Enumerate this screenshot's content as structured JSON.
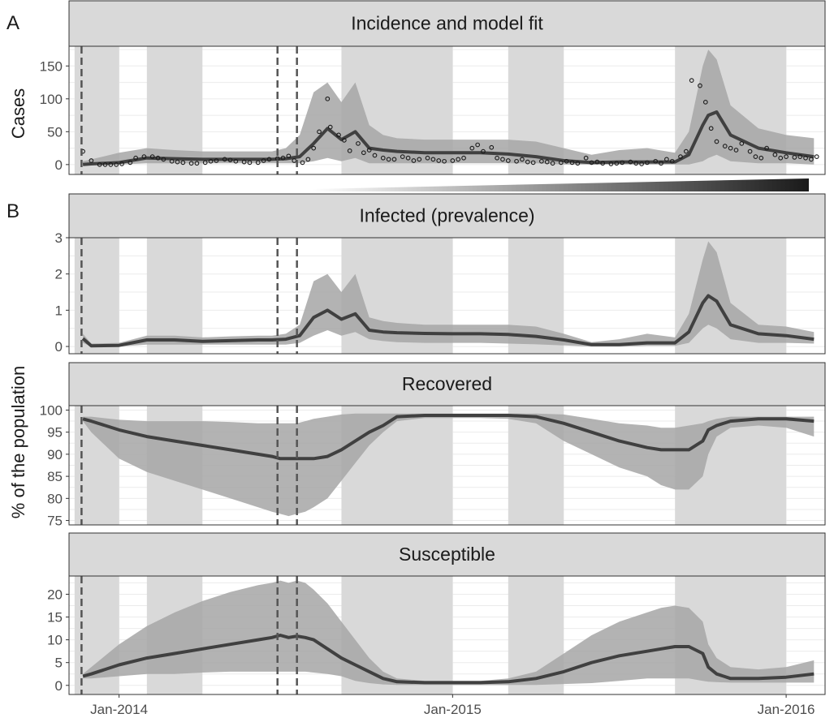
{
  "panel_letters": [
    "A",
    "B"
  ],
  "y_axis_titles": {
    "top": "Cases",
    "bottom": "% of the population"
  },
  "x_ticks": [
    {
      "label": "Jan-2014",
      "x": 1.0
    },
    {
      "label": "Jan-2015",
      "x": 13.0
    },
    {
      "label": "Jan-2016",
      "x": 25.0
    }
  ],
  "colors": {
    "line": "#404040",
    "band": "#a6a6a6",
    "shade": "#d9d9d9",
    "strip": "#d9d9d9",
    "vline": "#555555",
    "grid": "#ebebeb"
  },
  "x_range": [
    -0.8,
    26.4
  ],
  "shaded_periods": [
    [
      -0.6,
      1.0
    ],
    [
      2.0,
      4.0
    ],
    [
      9.0,
      13.0
    ],
    [
      15.0,
      17.0
    ],
    [
      21.0,
      25.0
    ]
  ],
  "vertical_dashed_lines": [
    -0.35,
    6.7,
    7.4
  ],
  "chart_data": [
    {
      "type": "line",
      "title": "Incidence and model fit",
      "ylabel": "Cases",
      "ylim": [
        -15,
        180
      ],
      "yticks": [
        0,
        50,
        100,
        150
      ],
      "series": [
        {
          "x": [
            -0.3,
            0,
            1,
            2,
            3,
            4,
            5,
            6,
            6.5,
            7,
            7.5,
            8,
            8.5,
            9,
            9.5,
            10,
            10.5,
            11,
            12,
            13,
            14,
            15,
            16,
            17,
            18,
            19,
            20,
            21,
            21.5,
            22,
            22.2,
            22.5,
            23,
            24,
            25,
            26
          ],
          "values": [
            0,
            1,
            3,
            10,
            9,
            8,
            8,
            8,
            8,
            9,
            12,
            32,
            55,
            38,
            50,
            25,
            22,
            20,
            18,
            18,
            18,
            16,
            12,
            6,
            3,
            4,
            4,
            4,
            15,
            60,
            75,
            80,
            45,
            25,
            18,
            12
          ]
        }
      ],
      "band": {
        "x": [
          -0.3,
          0,
          1,
          2,
          3,
          4,
          5,
          6,
          6.5,
          7,
          7.5,
          8,
          8.5,
          9,
          9.5,
          10,
          10.5,
          11,
          12,
          13,
          14,
          15,
          16,
          17,
          18,
          19,
          20,
          21,
          21.5,
          22,
          22.2,
          22.5,
          23,
          24,
          25,
          26
        ],
        "lower": [
          0,
          0,
          0,
          2,
          2,
          2,
          2,
          2,
          2,
          2,
          2,
          5,
          10,
          5,
          10,
          2,
          2,
          2,
          2,
          2,
          2,
          2,
          2,
          0,
          0,
          0,
          0,
          0,
          0,
          5,
          10,
          15,
          5,
          2,
          2,
          0
        ],
        "upper": [
          5,
          8,
          18,
          25,
          22,
          20,
          20,
          20,
          20,
          25,
          45,
          110,
          125,
          95,
          125,
          60,
          45,
          40,
          38,
          38,
          38,
          38,
          35,
          25,
          15,
          22,
          25,
          18,
          50,
          150,
          175,
          160,
          90,
          55,
          45,
          40
        ]
      },
      "observed": {
        "x": [
          -0.3,
          0.0,
          0.3,
          0.5,
          0.7,
          0.9,
          1.1,
          1.4,
          1.6,
          1.9,
          2.2,
          2.4,
          2.6,
          2.9,
          3.1,
          3.3,
          3.6,
          3.8,
          4.1,
          4.3,
          4.5,
          4.8,
          5.0,
          5.2,
          5.5,
          5.7,
          6.0,
          6.2,
          6.4,
          6.7,
          6.9,
          7.1,
          7.3,
          7.6,
          7.8,
          8.0,
          8.2,
          8.5,
          8.6,
          8.9,
          9.1,
          9.3,
          9.6,
          9.8,
          10.0,
          10.2,
          10.5,
          10.7,
          10.9,
          11.2,
          11.4,
          11.6,
          11.8,
          12.1,
          12.3,
          12.5,
          12.7,
          13.0,
          13.2,
          13.4,
          13.7,
          13.9,
          14.1,
          14.4,
          14.6,
          14.8,
          15.0,
          15.3,
          15.5,
          15.7,
          15.9,
          16.2,
          16.4,
          16.6,
          16.9,
          17.1,
          17.3,
          17.5,
          17.8,
          18.0,
          18.2,
          18.4,
          18.7,
          18.9,
          19.1,
          19.4,
          19.6,
          19.8,
          20.0,
          20.3,
          20.5,
          20.7,
          20.9,
          21.2,
          21.4,
          21.6,
          21.9,
          22.1,
          22.3,
          22.5,
          22.8,
          23.0,
          23.2,
          23.4,
          23.7,
          23.9,
          24.1,
          24.3,
          24.6,
          24.8,
          25.0,
          25.3,
          25.5,
          25.7,
          25.9,
          26.1
        ],
        "y": [
          20,
          6,
          0,
          0,
          0,
          0,
          1,
          3,
          10,
          12,
          12,
          10,
          8,
          5,
          4,
          3,
          2,
          2,
          3,
          5,
          6,
          8,
          7,
          5,
          4,
          3,
          3,
          6,
          8,
          9,
          10,
          13,
          6,
          3,
          8,
          25,
          50,
          100,
          57,
          45,
          37,
          21,
          32,
          18,
          22,
          14,
          10,
          8,
          8,
          12,
          10,
          6,
          8,
          10,
          8,
          6,
          5,
          6,
          8,
          10,
          25,
          30,
          20,
          26,
          10,
          8,
          6,
          5,
          8,
          4,
          3,
          5,
          4,
          2,
          3,
          5,
          3,
          2,
          10,
          3,
          4,
          2,
          1,
          2,
          3,
          4,
          2,
          1,
          3,
          5,
          2,
          8,
          5,
          12,
          20,
          128,
          120,
          95,
          55,
          35,
          28,
          25,
          22,
          32,
          20,
          12,
          10,
          25,
          15,
          10,
          12,
          11,
          12,
          10,
          8,
          12
        ]
      },
      "gradient_bar": {
        "from": "#ffffff",
        "to": "#1a1a1a"
      }
    },
    {
      "type": "line",
      "title": "Infected (prevalence)",
      "ylim": [
        -0.2,
        3
      ],
      "yticks": [
        0,
        1,
        2,
        3
      ],
      "series": [
        {
          "x": [
            -0.3,
            0,
            1,
            2,
            3,
            4,
            5,
            6,
            6.5,
            7,
            7.5,
            8,
            8.5,
            9,
            9.5,
            10,
            10.5,
            11,
            12,
            13,
            14,
            15,
            16,
            17,
            18,
            19,
            20,
            21,
            21.5,
            22,
            22.2,
            22.5,
            23,
            24,
            25,
            26
          ],
          "values": [
            0.22,
            0.02,
            0.03,
            0.18,
            0.18,
            0.14,
            0.16,
            0.18,
            0.18,
            0.2,
            0.3,
            0.8,
            1.0,
            0.75,
            0.9,
            0.45,
            0.4,
            0.38,
            0.36,
            0.35,
            0.35,
            0.33,
            0.28,
            0.18,
            0.05,
            0.05,
            0.1,
            0.1,
            0.4,
            1.2,
            1.4,
            1.25,
            0.6,
            0.35,
            0.3,
            0.2
          ]
        }
      ],
      "band": {
        "x": [
          -0.3,
          0,
          1,
          2,
          3,
          4,
          5,
          6,
          6.5,
          7,
          7.5,
          8,
          8.5,
          9,
          9.5,
          10,
          10.5,
          11,
          12,
          13,
          14,
          15,
          16,
          17,
          18,
          19,
          20,
          21,
          21.5,
          22,
          22.2,
          22.5,
          23,
          24,
          25,
          26
        ],
        "lower": [
          0.1,
          0,
          0,
          0.05,
          0.05,
          0.05,
          0.05,
          0.05,
          0.05,
          0.05,
          0.1,
          0.3,
          0.45,
          0.3,
          0.4,
          0.2,
          0.15,
          0.12,
          0.1,
          0.1,
          0.1,
          0.08,
          0.06,
          0.03,
          0,
          0,
          0.02,
          0.02,
          0.1,
          0.5,
          0.6,
          0.5,
          0.2,
          0.1,
          0.1,
          0.08
        ],
        "upper": [
          0.35,
          0.08,
          0.1,
          0.3,
          0.3,
          0.25,
          0.28,
          0.3,
          0.3,
          0.35,
          0.6,
          1.8,
          2.0,
          1.5,
          2.0,
          0.8,
          0.7,
          0.65,
          0.6,
          0.6,
          0.6,
          0.6,
          0.55,
          0.35,
          0.12,
          0.2,
          0.35,
          0.25,
          0.9,
          2.4,
          2.9,
          2.6,
          1.2,
          0.6,
          0.55,
          0.4
        ]
      }
    },
    {
      "type": "line",
      "title": "Recovered",
      "ylim": [
        74,
        101
      ],
      "yticks": [
        75,
        80,
        85,
        90,
        95,
        100
      ],
      "series": [
        {
          "x": [
            -0.3,
            0,
            1,
            2,
            3,
            4,
            5,
            6,
            6.5,
            6.8,
            7.1,
            7.4,
            7.7,
            8,
            8.5,
            9,
            9.5,
            10,
            10.5,
            11,
            12,
            13,
            14,
            15,
            16,
            17,
            18,
            19,
            20,
            20.5,
            21,
            21.5,
            22,
            22.2,
            22.5,
            23,
            24,
            25,
            26
          ],
          "values": [
            98,
            97.5,
            95.5,
            94,
            93,
            92,
            91,
            90,
            89.5,
            89,
            89,
            89,
            89,
            89,
            89.5,
            91,
            93,
            95,
            96.5,
            98.5,
            98.8,
            98.8,
            98.8,
            98.8,
            98.5,
            97,
            95,
            93,
            91.5,
            91,
            91,
            91,
            93,
            95.5,
            96.5,
            97.5,
            98,
            98,
            97.5
          ]
        }
      ],
      "band": {
        "x": [
          -0.3,
          0,
          1,
          2,
          3,
          4,
          5,
          6,
          6.5,
          6.8,
          7.1,
          7.4,
          7.7,
          8,
          8.5,
          9,
          9.5,
          10,
          10.5,
          11,
          12,
          13,
          14,
          15,
          16,
          17,
          18,
          19,
          20,
          20.5,
          21,
          21.5,
          22,
          22.2,
          22.5,
          23,
          24,
          25,
          26
        ],
        "lower": [
          97.5,
          95,
          89,
          86,
          84,
          82,
          80,
          78,
          77,
          76.5,
          76,
          76.5,
          77,
          78,
          80,
          84,
          88,
          92,
          95,
          97.5,
          98.2,
          98.2,
          98.2,
          98,
          97,
          93,
          90,
          87,
          85,
          83,
          82,
          82,
          85,
          90,
          94,
          96,
          96.5,
          96,
          94
        ],
        "upper": [
          98.5,
          98.5,
          97.8,
          97.5,
          97.5,
          97.5,
          97.3,
          97,
          97,
          97,
          97,
          97,
          97.5,
          98,
          98.5,
          99,
          99.2,
          99.2,
          99.2,
          99.2,
          99.2,
          99.2,
          99.2,
          99.2,
          99.2,
          99,
          98,
          97,
          96.5,
          96,
          96,
          96.5,
          97,
          97.5,
          98,
          98.5,
          98.5,
          98.5,
          98.5
        ]
      }
    },
    {
      "type": "line",
      "title": "Susceptible",
      "ylim": [
        -2,
        24
      ],
      "yticks": [
        0,
        5,
        10,
        15,
        20
      ],
      "series": [
        {
          "x": [
            -0.3,
            0,
            1,
            2,
            3,
            4,
            5,
            6,
            6.5,
            6.8,
            7.1,
            7.4,
            7.7,
            8,
            8.5,
            9,
            9.5,
            10,
            10.5,
            11,
            12,
            13,
            14,
            15,
            16,
            17,
            18,
            19,
            20,
            20.5,
            21,
            21.5,
            22,
            22.2,
            22.5,
            23,
            24,
            25,
            26
          ],
          "values": [
            2,
            2.5,
            4.5,
            6,
            7,
            8,
            9,
            10,
            10.5,
            11,
            10.5,
            10.8,
            10.5,
            10,
            8,
            6,
            4.5,
            3,
            1.5,
            0.8,
            0.6,
            0.6,
            0.6,
            0.8,
            1.5,
            3,
            5,
            6.5,
            7.5,
            8,
            8.5,
            8.5,
            7,
            4,
            2.5,
            1.5,
            1.5,
            1.8,
            2.5
          ]
        }
      ],
      "band": {
        "x": [
          -0.3,
          0,
          1,
          2,
          3,
          4,
          5,
          6,
          6.5,
          6.8,
          7.1,
          7.4,
          7.7,
          8,
          8.5,
          9,
          9.5,
          10,
          10.5,
          11,
          12,
          13,
          14,
          15,
          16,
          17,
          18,
          19,
          20,
          20.5,
          21,
          21.5,
          22,
          22.2,
          22.5,
          23,
          24,
          25,
          26
        ],
        "lower": [
          1.5,
          1.5,
          2,
          2.5,
          2.5,
          2.8,
          3,
          3,
          3,
          3,
          3,
          3,
          3,
          2.8,
          2.5,
          2,
          1,
          0.5,
          0.2,
          0.1,
          0.1,
          0.1,
          0.1,
          0.1,
          0.1,
          0.3,
          0.5,
          1,
          1.5,
          1.5,
          1.5,
          1.5,
          1,
          0.8,
          0.7,
          0.6,
          0.6,
          0.6,
          0.6
        ],
        "upper": [
          2.5,
          4,
          9,
          13,
          16,
          18.5,
          20.5,
          22,
          22.5,
          23,
          22.5,
          23,
          22.5,
          21,
          18,
          14,
          10,
          6,
          3,
          1.5,
          1,
          1,
          1,
          1.5,
          3,
          7,
          11,
          14,
          16,
          17,
          17.5,
          17,
          14,
          9,
          6,
          4,
          3.5,
          4,
          5.5
        ]
      }
    }
  ]
}
